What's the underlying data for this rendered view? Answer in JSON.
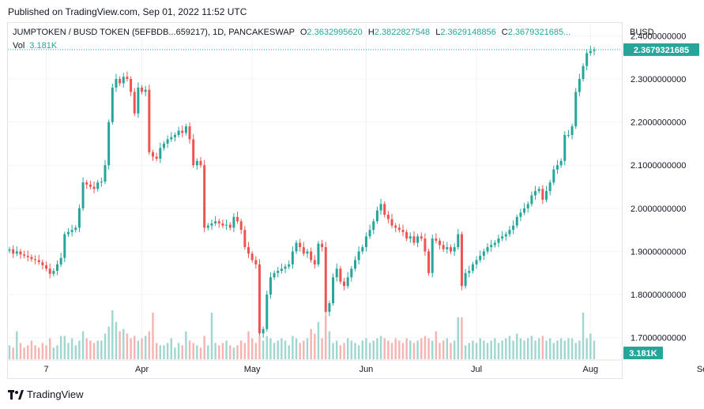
{
  "published": "Published on TradingView.com, Sep 01, 2022 11:52 UTC",
  "legend": {
    "symbol": "JUMPTOKEN / BUSD TOKEN (5EFBDB...659217), 1D, PANCAKESWAP",
    "o_label": "O",
    "o_value": "2.3632995620",
    "h_label": "H",
    "h_value": "2.3822827548",
    "l_label": "L",
    "l_value": "2.3629148856",
    "c_label": "C",
    "c_value": "2.3679321685...",
    "vol_label": "Vol",
    "vol_value": "3.181K"
  },
  "currency": "BUSD",
  "footer": {
    "brand": "TradingView"
  },
  "colors": {
    "up": "#26a69a",
    "down": "#ef5350",
    "up_vol": "#9fd6cf",
    "down_vol": "#f5b3b1",
    "grid": "#f0f3fa"
  },
  "chart_data": {
    "type": "candlestick",
    "ylim": [
      1.65,
      2.43
    ],
    "y_ticks": [
      "2.4000000000",
      "2.3000000000",
      "2.2000000000",
      "2.1000000000",
      "2.0000000000",
      "1.9000000000",
      "1.8000000000",
      "1.7000000000"
    ],
    "y_tick_values": [
      2.4,
      2.3,
      2.2,
      2.1,
      2.0,
      1.9,
      1.8,
      1.7
    ],
    "x_ticks": [
      "7",
      "Apr",
      "May",
      "Jun",
      "Jul",
      "Aug",
      "Sep"
    ],
    "x_tick_index": [
      10,
      36,
      66,
      97,
      127,
      158,
      189
    ],
    "last_price_label": "2.3679321685",
    "last_price": 2.3679,
    "last_volume_label": "3.181K",
    "closes": [
      1.905,
      1.895,
      1.9,
      1.893,
      1.89,
      1.887,
      1.882,
      1.88,
      1.875,
      1.868,
      1.86,
      1.848,
      1.855,
      1.87,
      1.885,
      1.94,
      1.945,
      1.95,
      1.955,
      2.0,
      2.06,
      2.055,
      2.05,
      2.045,
      2.06,
      2.062,
      2.1,
      2.2,
      2.28,
      2.3,
      2.29,
      2.305,
      2.3,
      2.27,
      2.22,
      2.28,
      2.27,
      2.275,
      2.13,
      2.12,
      2.115,
      2.14,
      2.15,
      2.16,
      2.165,
      2.17,
      2.18,
      2.175,
      2.19,
      2.16,
      2.1,
      2.11,
      2.1,
      1.955,
      1.96,
      1.965,
      1.97,
      1.965,
      1.96,
      1.962,
      1.955,
      1.98,
      1.97,
      1.95,
      1.91,
      1.895,
      1.88,
      1.87,
      1.71,
      1.72,
      1.8,
      1.84,
      1.85,
      1.855,
      1.86,
      1.865,
      1.87,
      1.9,
      1.92,
      1.91,
      1.895,
      1.9,
      1.88,
      1.87,
      1.918,
      1.91,
      1.76,
      1.78,
      1.84,
      1.86,
      1.83,
      1.82,
      1.84,
      1.86,
      1.88,
      1.9,
      1.91,
      1.935,
      1.95,
      1.97,
      1.995,
      2.01,
      1.985,
      1.975,
      1.96,
      1.955,
      1.95,
      1.945,
      1.93,
      1.935,
      1.92,
      1.935,
      1.93,
      1.9,
      1.85,
      1.93,
      1.925,
      1.915,
      1.905,
      1.91,
      1.9,
      1.91,
      1.94,
      1.82,
      1.85,
      1.855,
      1.87,
      1.88,
      1.89,
      1.9,
      1.91,
      1.915,
      1.92,
      1.93,
      1.935,
      1.94,
      1.95,
      1.96,
      1.98,
      1.99,
      2.0,
      2.01,
      2.03,
      2.04,
      2.045,
      2.02,
      2.04,
      2.06,
      2.09,
      2.1,
      2.11,
      2.17,
      2.17,
      2.19,
      2.27,
      2.3,
      2.33,
      2.36,
      2.365,
      2.368
    ],
    "volumes": [
      0.6,
      0.5,
      1.2,
      0.7,
      0.5,
      0.6,
      0.8,
      0.6,
      0.5,
      0.7,
      0.6,
      0.9,
      0.5,
      0.6,
      1.0,
      1.0,
      0.7,
      0.9,
      0.6,
      0.8,
      1.2,
      0.9,
      0.8,
      0.7,
      0.8,
      0.8,
      1.1,
      1.4,
      2.1,
      1.6,
      1.2,
      1.3,
      1.1,
      0.9,
      1.0,
      0.8,
      0.9,
      1.0,
      1.2,
      2.0,
      0.7,
      0.6,
      0.6,
      0.7,
      0.9,
      0.5,
      0.7,
      0.6,
      1.2,
      0.8,
      0.7,
      0.6,
      0.5,
      1.0,
      0.6,
      2.0,
      0.7,
      0.6,
      0.7,
      0.8,
      0.6,
      0.5,
      0.6,
      0.8,
      0.7,
      1.2,
      0.9,
      0.7,
      1.0,
      0.8,
      1.0,
      0.9,
      0.7,
      0.8,
      0.9,
      0.8,
      0.6,
      1.0,
      0.9,
      0.7,
      0.8,
      0.9,
      1.3,
      1.1,
      1.6,
      0.9,
      1.9,
      1.2,
      0.7,
      0.8,
      0.6,
      0.7,
      0.9,
      0.8,
      0.7,
      0.6,
      0.8,
      0.9,
      0.7,
      0.8,
      0.9,
      1.0,
      0.9,
      0.8,
      0.7,
      0.9,
      0.8,
      0.7,
      0.9,
      0.8,
      0.7,
      0.8,
      0.9,
      1.0,
      0.9,
      0.8,
      1.2,
      0.7,
      0.8,
      0.9,
      0.7,
      0.8,
      1.8,
      1.8,
      0.6,
      0.7,
      0.8,
      0.7,
      0.9,
      0.8,
      0.7,
      0.8,
      0.9,
      0.7,
      0.8,
      0.9,
      1.0,
      0.8,
      1.1,
      0.9,
      0.8,
      0.9,
      1.0,
      0.8,
      0.9,
      1.0,
      0.8,
      0.9,
      0.7,
      0.8,
      0.9,
      0.8,
      0.9,
      0.9,
      0.7,
      0.8,
      2.0,
      0.9,
      1.1,
      0.8
    ]
  }
}
